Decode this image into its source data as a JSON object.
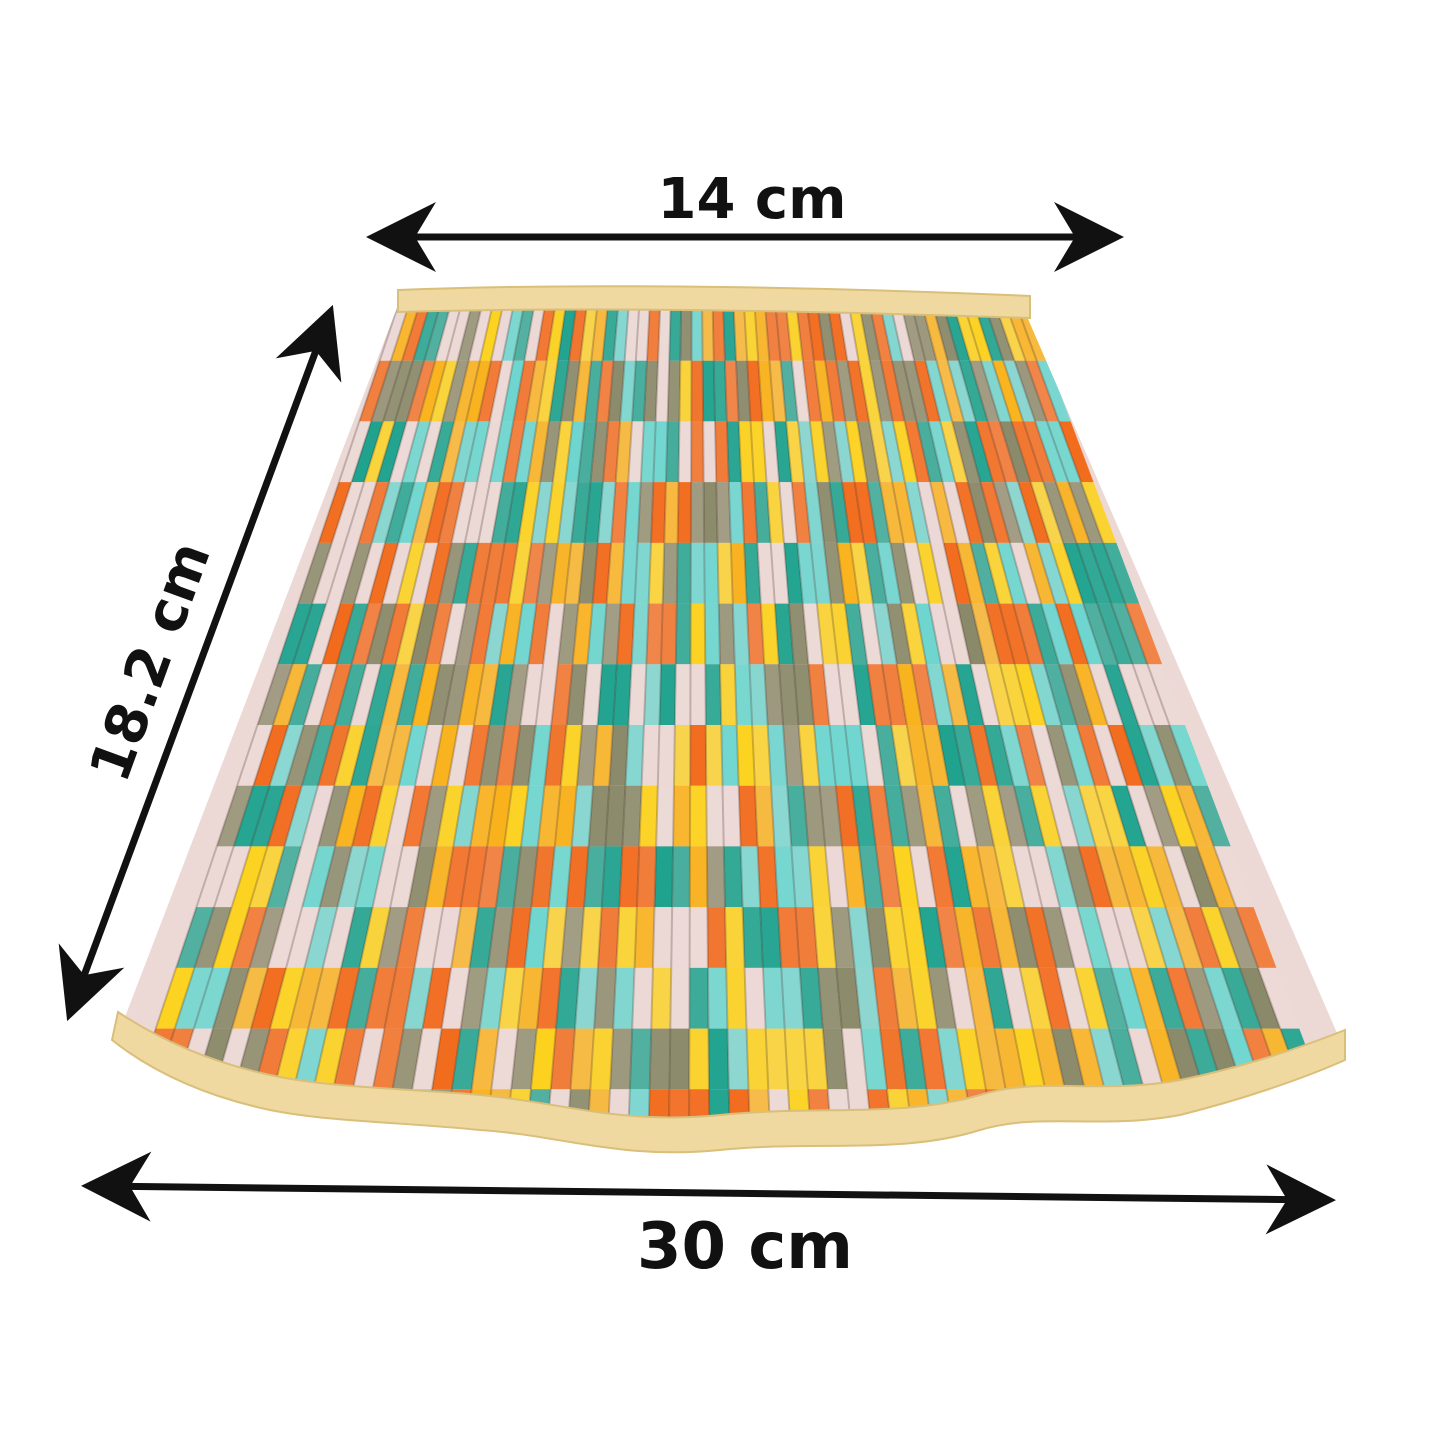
{
  "dimensions": {
    "top_width": "14 cm",
    "side_height": "18.2 cm",
    "bottom_width": "30 cm"
  },
  "colors": {
    "arrow": "#111111",
    "trim": "#efd9a0",
    "fabric_palette": [
      "#f26a1b",
      "#1fa38f",
      "#f9b21c",
      "#ecd9d6",
      "#8a8a6a",
      "#6fd6cf",
      "#fcd21e"
    ]
  },
  "icons": {
    "arrows": "double-headed-dimension-arrow"
  }
}
